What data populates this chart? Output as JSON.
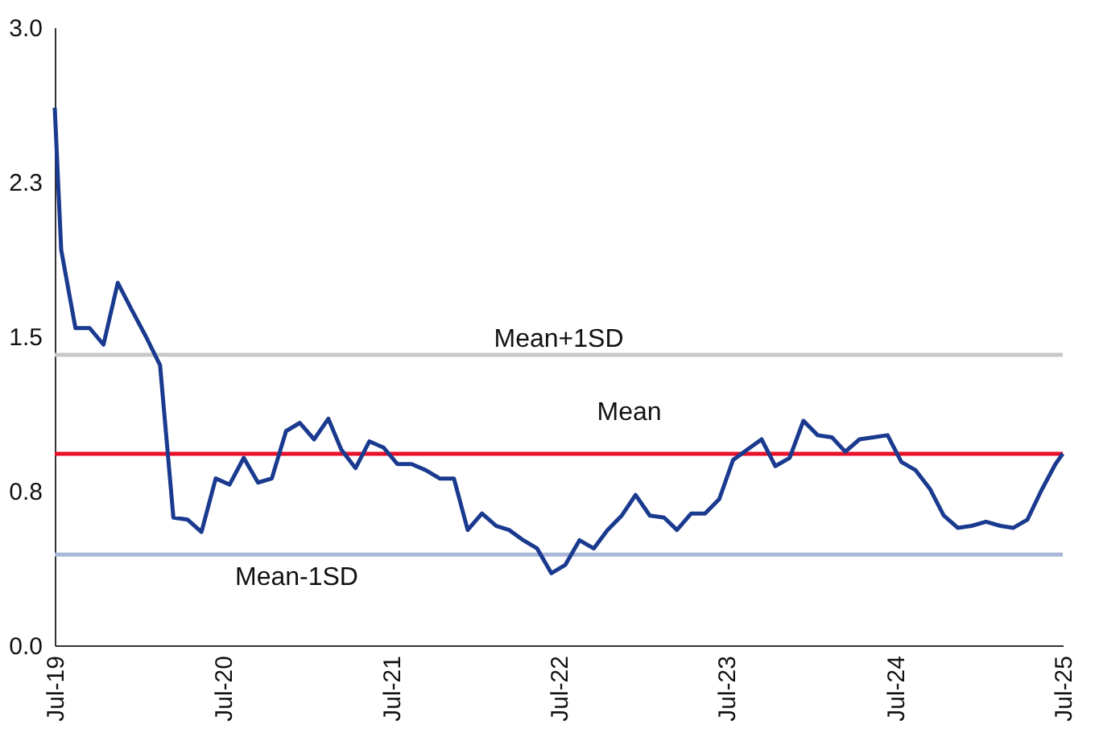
{
  "chart_data": {
    "type": "line",
    "x": [
      "2019-07-01",
      "2019-07-15",
      "2019-08-15",
      "2019-09-15",
      "2019-10-15",
      "2019-11-15",
      "2019-12-15",
      "2020-01-15",
      "2020-02-15",
      "2020-03-15",
      "2020-04-15",
      "2020-05-15",
      "2020-06-15",
      "2020-07-15",
      "2020-08-15",
      "2020-09-15",
      "2020-10-15",
      "2020-11-15",
      "2020-12-15",
      "2021-01-15",
      "2021-02-15",
      "2021-03-15",
      "2021-04-15",
      "2021-05-15",
      "2021-06-15",
      "2021-07-15",
      "2021-08-15",
      "2021-09-15",
      "2021-10-15",
      "2021-11-15",
      "2021-12-15",
      "2022-01-15",
      "2022-02-15",
      "2022-03-15",
      "2022-04-15",
      "2022-05-15",
      "2022-06-15",
      "2022-07-15",
      "2022-08-15",
      "2022-09-15",
      "2022-10-15",
      "2022-11-15",
      "2022-12-15",
      "2023-01-15",
      "2023-02-15",
      "2023-03-15",
      "2023-04-15",
      "2023-05-15",
      "2023-06-15",
      "2023-07-15",
      "2023-08-15",
      "2023-09-15",
      "2023-10-15",
      "2023-11-15",
      "2023-12-15",
      "2024-01-15",
      "2024-02-15",
      "2024-03-15",
      "2024-04-15",
      "2024-05-15",
      "2024-06-15",
      "2024-07-15",
      "2024-08-15",
      "2024-09-15",
      "2024-10-15",
      "2024-11-15",
      "2024-12-15",
      "2025-01-15",
      "2025-02-15",
      "2025-03-15",
      "2025-04-15",
      "2025-05-15",
      "2025-06-15",
      "2025-07-01"
    ],
    "series": [
      {
        "color": "#1a3a8f",
        "values": [
          2.61,
          1.92,
          1.54,
          1.54,
          1.46,
          1.76,
          1.63,
          1.5,
          1.36,
          0.62,
          0.61,
          0.55,
          0.81,
          0.78,
          0.91,
          0.79,
          0.81,
          1.04,
          1.08,
          1.0,
          1.1,
          0.95,
          0.86,
          0.99,
          0.96,
          0.88,
          0.88,
          0.85,
          0.81,
          0.81,
          0.56,
          0.64,
          0.58,
          0.56,
          0.51,
          0.47,
          0.35,
          0.39,
          0.51,
          0.47,
          0.56,
          0.63,
          0.73,
          0.63,
          0.62,
          0.56,
          0.64,
          0.64,
          0.71,
          0.9,
          0.95,
          1.0,
          0.87,
          0.91,
          1.09,
          1.02,
          1.01,
          0.94,
          1.0,
          1.01,
          1.02,
          0.89,
          0.85,
          0.76,
          0.63,
          0.57,
          0.58,
          0.6,
          0.58,
          0.57,
          0.61,
          0.75,
          0.88,
          0.93
        ]
      }
    ],
    "ylim": [
      0,
      3
    ],
    "yticks": [
      {
        "value": 0,
        "label": "0.0"
      },
      {
        "value": 0.75,
        "label": "0.8"
      },
      1.5,
      {
        "value": 2.25,
        "label": "2.3"
      },
      {
        "value": 3,
        "label": "3.0"
      }
    ],
    "xlim": [
      "2019-07-01",
      "2025-07-01"
    ],
    "xticks": [
      {
        "value": "2019-07-01",
        "label": "Jul-19"
      },
      {
        "value": "2020-07-01",
        "label": "Jul-20"
      },
      {
        "value": "2021-07-01",
        "label": "Jul-21"
      },
      {
        "value": "2022-07-01",
        "label": "Jul-22"
      },
      {
        "value": "2023-07-01",
        "label": "Jul-23"
      },
      {
        "value": "2024-07-01",
        "label": "Jul-24"
      },
      {
        "value": "2025-07-01",
        "label": "Jul-25"
      }
    ],
    "ref_lines": [
      {
        "axis": "y",
        "value": 1.41,
        "label": "Mean+1SD",
        "color": "#c8c8c8"
      },
      {
        "axis": "y",
        "value": 0.93,
        "label": "Mean",
        "color": "#e8102a"
      },
      {
        "axis": "y",
        "value": 0.44,
        "label": "Mean-1SD",
        "color": "#a9b7d9"
      }
    ],
    "grid": false,
    "line_style": "solid",
    "marker": "none"
  }
}
